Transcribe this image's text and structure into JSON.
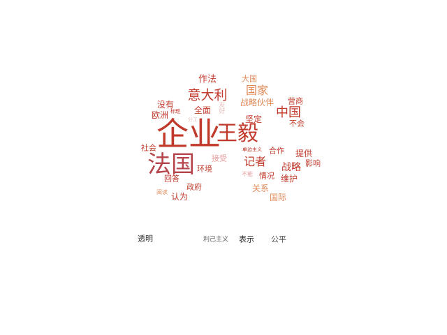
{
  "chart_data": {
    "type": "wordcloud",
    "words": [
      {
        "text": "企业",
        "weight": 100,
        "color": "#c0392b"
      },
      {
        "text": "王毅",
        "weight": 90,
        "color": "#c0392b"
      },
      {
        "text": "法国",
        "weight": 80,
        "color": "#b5444b"
      },
      {
        "text": "意大利",
        "weight": 55,
        "color": "#c0392b"
      },
      {
        "text": "国家",
        "weight": 50,
        "color": "#e08a5a"
      },
      {
        "text": "中国",
        "weight": 50,
        "color": "#c0392b"
      },
      {
        "text": "记者",
        "weight": 48,
        "color": "#c0392b"
      },
      {
        "text": "战略",
        "weight": 45,
        "color": "#c0392b"
      },
      {
        "text": "战略伙伴",
        "weight": 38,
        "color": "#e08a5a"
      },
      {
        "text": "提供",
        "weight": 35,
        "color": "#c0392b"
      },
      {
        "text": "作法",
        "weight": 33,
        "color": "#c0392b"
      },
      {
        "text": "坚定",
        "weight": 32,
        "color": "#c0392b"
      },
      {
        "text": "维护",
        "weight": 32,
        "color": "#c0392b"
      },
      {
        "text": "国际",
        "weight": 30,
        "color": "#e08a5a"
      },
      {
        "text": "没有",
        "weight": 30,
        "color": "#c0392b"
      },
      {
        "text": "欧洲",
        "weight": 30,
        "color": "#c0392b"
      },
      {
        "text": "全面",
        "weight": 28,
        "color": "#c0392b"
      },
      {
        "text": "营商",
        "weight": 28,
        "color": "#c0392b"
      },
      {
        "text": "不会",
        "weight": 28,
        "color": "#c0392b"
      },
      {
        "text": "影响",
        "weight": 28,
        "color": "#c0392b"
      },
      {
        "text": "合作",
        "weight": 28,
        "color": "#c0392b"
      },
      {
        "text": "情况",
        "weight": 28,
        "color": "#c0392b"
      },
      {
        "text": "关系",
        "weight": 28,
        "color": "#e08a5a"
      },
      {
        "text": "认为",
        "weight": 28,
        "color": "#c0392b"
      },
      {
        "text": "回答",
        "weight": 28,
        "color": "#c0392b"
      },
      {
        "text": "环境",
        "weight": 28,
        "color": "#c0392b"
      },
      {
        "text": "政府",
        "weight": 28,
        "color": "#c0392b"
      },
      {
        "text": "接受",
        "weight": 28,
        "color": "#e8a0a0"
      },
      {
        "text": "社会",
        "weight": 26,
        "color": "#c0392b"
      },
      {
        "text": "大国",
        "weight": 24,
        "color": "#e08a5a"
      },
      {
        "text": "不能",
        "weight": 18,
        "color": "#e8a0a0"
      },
      {
        "text": "单边主义",
        "weight": 15,
        "color": "#c0392b"
      },
      {
        "text": "分工",
        "weight": 15,
        "color": "#e8c0c0"
      },
      {
        "text": "友好",
        "weight": 15,
        "color": "#e8c0c0"
      },
      {
        "text": "阅读",
        "weight": 15,
        "color": "#e08a5a"
      },
      {
        "text": "标题",
        "weight": 10,
        "color": "#c0392b"
      },
      {
        "text": "透明",
        "weight": 28,
        "color": "#333333"
      },
      {
        "text": "利己主义",
        "weight": 20,
        "color": "#555555"
      },
      {
        "text": "表示",
        "weight": 28,
        "color": "#333333"
      },
      {
        "text": "公平",
        "weight": 28,
        "color": "#555555"
      }
    ]
  }
}
